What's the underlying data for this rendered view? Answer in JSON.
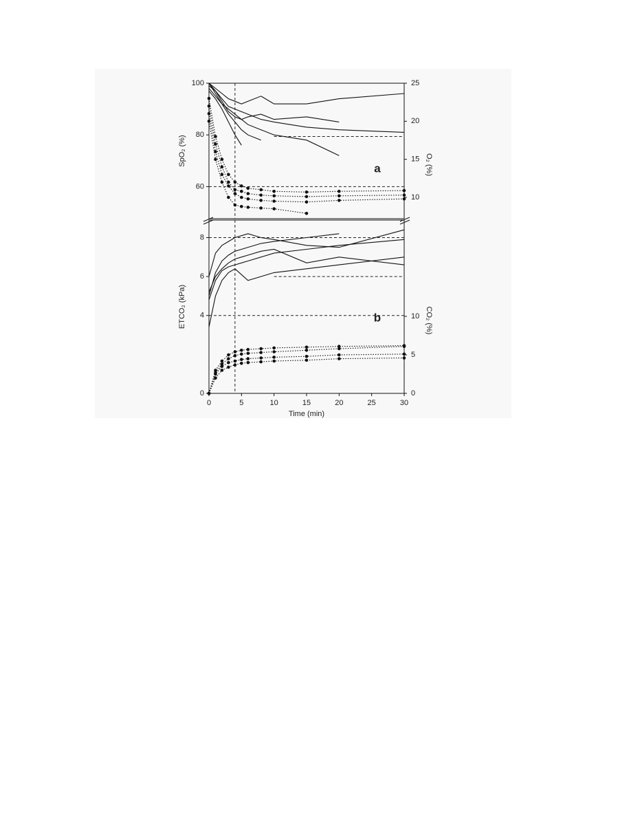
{
  "chart_data": [
    {
      "type": "line",
      "annotation": "a",
      "ylabel": "SpO₂ (%)",
      "y2label": "O₂ (%)",
      "x": [
        0,
        1,
        2,
        3,
        4,
        5,
        6,
        8,
        10,
        15,
        20,
        30
      ],
      "xlim": [
        0,
        30
      ],
      "ylim": [
        47.6,
        100
      ],
      "yticks": [
        60,
        80,
        100
      ],
      "y2lim": [
        7.2,
        25
      ],
      "y2ticks": [
        10,
        15,
        20,
        25
      ],
      "vlines": [
        4
      ],
      "hlines": [
        {
          "value": 60,
          "axis": "y",
          "from": 0
        },
        {
          "value": 18,
          "axis": "y2",
          "from": 10
        }
      ],
      "series": [
        {
          "color": "#111111",
          "style": "solid",
          "values": [
            100,
            98,
            96,
            94,
            93,
            92,
            93,
            95,
            92,
            92,
            94,
            96
          ]
        },
        {
          "color": "#111111",
          "style": "solid",
          "values": [
            99,
            97,
            94,
            91,
            90,
            89,
            88,
            86,
            85,
            83,
            82,
            81
          ]
        },
        {
          "color": "#111111",
          "style": "solid",
          "values": [
            100,
            96,
            92,
            88,
            85,
            82,
            80,
            78,
            null,
            null,
            null,
            null
          ]
        },
        {
          "color": "#111111",
          "style": "solid",
          "values": [
            98,
            95,
            92,
            90,
            88,
            86,
            84,
            82,
            80,
            78,
            72,
            null
          ]
        },
        {
          "color": "#111111",
          "style": "solid",
          "values": [
            100,
            97,
            93,
            89,
            87,
            86,
            87,
            88,
            86,
            87,
            85,
            null
          ]
        },
        {
          "color": "#111111",
          "style": "solid",
          "values": [
            97,
            94,
            90,
            85,
            80,
            76,
            null,
            null,
            null,
            null,
            null,
            null
          ]
        },
        {
          "color": "#111111",
          "style": "dotted",
          "axis": "y2",
          "values": [
            22,
            17,
            14,
            12,
            11,
            10.8,
            10.5,
            10.3,
            10.2,
            10.1,
            10.2,
            10.3
          ]
        },
        {
          "color": "#111111",
          "style": "dotted",
          "axis": "y2",
          "values": [
            21,
            16,
            13,
            11.5,
            10.5,
            10,
            9.8,
            9.6,
            9.5,
            9.4,
            9.6,
            9.8
          ]
        },
        {
          "color": "#111111",
          "style": "dotted",
          "axis": "y2",
          "values": [
            20,
            15,
            12,
            10,
            9,
            8.8,
            8.7,
            8.6,
            8.5,
            7.9,
            null,
            null
          ]
        },
        {
          "color": "#111111",
          "style": "dotted",
          "axis": "y2",
          "values": [
            23,
            18,
            15,
            13,
            12,
            11.5,
            11.2,
            11,
            10.8,
            10.7,
            10.8,
            10.9
          ]
        }
      ]
    },
    {
      "type": "line",
      "annotation": "b",
      "ylabel": "ETCO₂ (kPa)",
      "y2label": "CO₂ (%)",
      "xlabel": "Time (min)",
      "x": [
        0,
        1,
        2,
        3,
        4,
        5,
        6,
        8,
        10,
        15,
        20,
        30
      ],
      "xlim": [
        0,
        30
      ],
      "xticks": [
        0,
        5,
        10,
        15,
        20,
        25,
        30
      ],
      "ylim": [
        0,
        8.9
      ],
      "yticks": [
        0,
        4,
        6,
        8
      ],
      "y2lim": [
        0,
        22.5
      ],
      "y2ticks": [
        0,
        5,
        10
      ],
      "vlines": [
        4
      ],
      "hlines": [
        {
          "value": 8,
          "axis": "y",
          "from": 0
        },
        {
          "value": 6,
          "axis": "y",
          "from": 10
        },
        {
          "value": 4,
          "axis": "y",
          "from": 0
        }
      ],
      "series": [
        {
          "color": "#111111",
          "style": "solid",
          "values": [
            5,
            6.2,
            6.8,
            7.1,
            7.3,
            7.4,
            7.5,
            7.7,
            7.8,
            8,
            8.2,
            null
          ]
        },
        {
          "color": "#111111",
          "style": "solid",
          "values": [
            4.8,
            5.8,
            6.3,
            6.5,
            6.6,
            6.7,
            6.8,
            7,
            7.2,
            7.4,
            7.6,
            7.9
          ]
        },
        {
          "color": "#111111",
          "style": "solid",
          "values": [
            3.4,
            5,
            5.8,
            6.2,
            6.4,
            6.1,
            5.8,
            6,
            6.2,
            6.4,
            6.6,
            7
          ]
        },
        {
          "color": "#111111",
          "style": "solid",
          "values": [
            6,
            7.2,
            7.6,
            7.8,
            8,
            8.1,
            8.2,
            8,
            7.9,
            7.6,
            7.5,
            8.4
          ]
        },
        {
          "color": "#111111",
          "style": "solid",
          "values": [
            5.2,
            6,
            6.4,
            6.7,
            6.9,
            7,
            7.1,
            7.3,
            7.4,
            6.7,
            7,
            6.6
          ]
        },
        {
          "color": "#111111",
          "style": "dotted",
          "axis": "y2",
          "values": [
            0,
            2.5,
            3.5,
            4,
            4.2,
            4.4,
            4.5,
            4.6,
            4.7,
            4.8,
            5,
            5.1
          ]
        },
        {
          "color": "#111111",
          "style": "dotted",
          "axis": "y2",
          "values": [
            0,
            2,
            3,
            3.4,
            3.7,
            3.9,
            4,
            4.1,
            4.2,
            4.3,
            4.5,
            4.6
          ]
        },
        {
          "color": "#111111",
          "style": "dotted",
          "axis": "y2",
          "values": [
            0,
            3,
            4.2,
            5,
            5.4,
            5.6,
            5.7,
            5.8,
            5.9,
            6,
            6.1,
            6.2
          ]
        },
        {
          "color": "#111111",
          "style": "dotted",
          "axis": "y2",
          "values": [
            0,
            2.7,
            3.8,
            4.5,
            4.9,
            5.1,
            5.2,
            5.3,
            5.4,
            5.6,
            5.8,
            6.1
          ]
        }
      ]
    }
  ]
}
